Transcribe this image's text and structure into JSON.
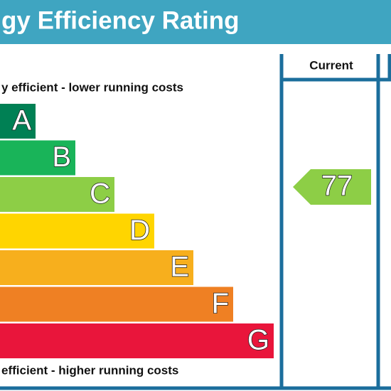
{
  "header": {
    "title": "gy Efficiency Rating"
  },
  "scale": {
    "top_label": "y efficient - lower running costs",
    "bottom_label": "efficient - higher running costs",
    "bands": [
      {
        "letter": "A"
      },
      {
        "letter": "B"
      },
      {
        "letter": "C"
      },
      {
        "letter": "D"
      },
      {
        "letter": "E"
      },
      {
        "letter": "F"
      },
      {
        "letter": "G"
      }
    ]
  },
  "columns": [
    {
      "label": "Current",
      "value": 77
    }
  ]
}
